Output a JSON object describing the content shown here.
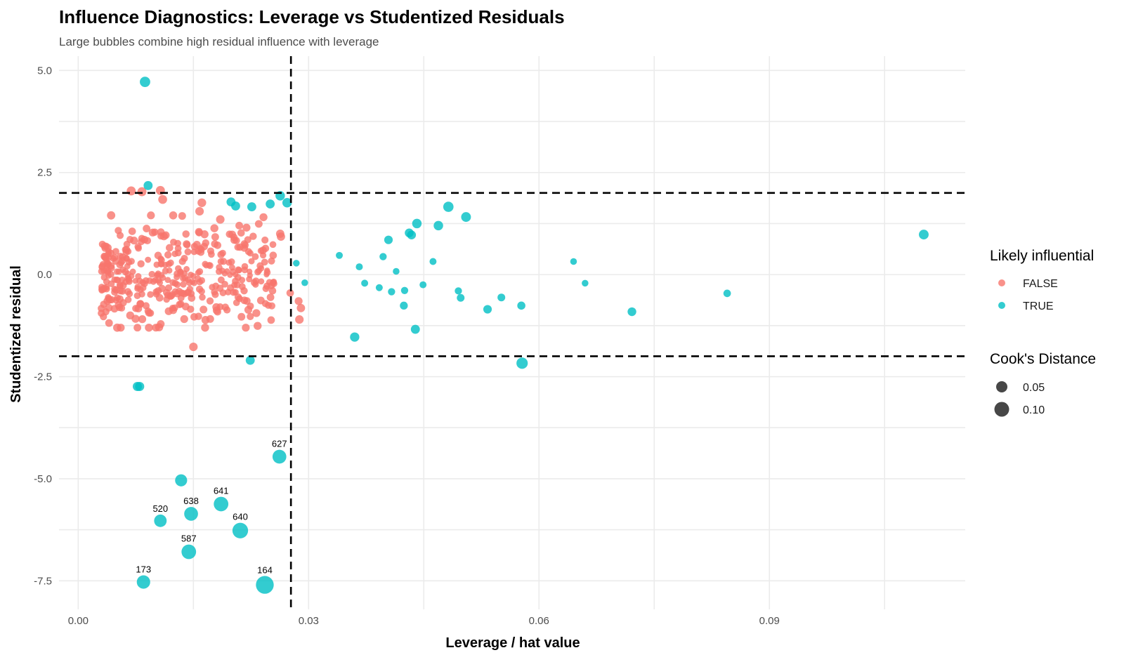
{
  "chart_data": {
    "type": "scatter",
    "title": "Influence Diagnostics: Leverage vs Studentized Residuals",
    "subtitle": "Large bubbles combine high residual influence with leverage",
    "xlabel": "Leverage / hat value",
    "ylabel": "Studentized residual",
    "xlim": [
      -0.0025,
      0.1155
    ],
    "ylim": [
      -8.2,
      5.35
    ],
    "x_ticks": [
      0.0,
      0.03,
      0.06,
      0.09
    ],
    "x_tick_labels": [
      "0.00",
      "0.03",
      "0.06",
      "0.09"
    ],
    "y_ticks": [
      5.0,
      2.5,
      0.0,
      -2.5,
      -5.0,
      -7.5
    ],
    "y_tick_labels": [
      "5.0",
      "2.5",
      "0.0",
      "-2.5",
      "-5.0",
      "-7.5"
    ],
    "grid": true,
    "reference_lines": {
      "vertical": [
        0.0277
      ],
      "horizontal": [
        2,
        -2
      ]
    },
    "colors": {
      "FALSE": "#F8766D",
      "TRUE": "#00BFC4"
    },
    "legend": {
      "placement": "right",
      "color_title": "Likely influential",
      "color_entries": [
        "FALSE",
        "TRUE"
      ],
      "size_title": "Cook's Distance",
      "size_entries": [
        {
          "label": "0.05",
          "value": 0.05
        },
        {
          "label": "0.10",
          "value": 0.1
        }
      ]
    },
    "series": [
      {
        "name": "TRUE",
        "points": [
          {
            "x": 0.0087,
            "y": 4.72,
            "cook": 0.025
          },
          {
            "x": 0.0091,
            "y": 2.18,
            "cook": 0.015
          },
          {
            "x": 0.0199,
            "y": 1.78,
            "cook": 0.015
          },
          {
            "x": 0.0205,
            "y": 1.68,
            "cook": 0.015
          },
          {
            "x": 0.0226,
            "y": 1.66,
            "cook": 0.015
          },
          {
            "x": 0.025,
            "y": 1.73,
            "cook": 0.015
          },
          {
            "x": 0.0263,
            "y": 1.93,
            "cook": 0.018
          },
          {
            "x": 0.0272,
            "y": 1.76,
            "cook": 0.018
          },
          {
            "x": 0.0284,
            "y": 0.28,
            "cook": 0.004
          },
          {
            "x": 0.0295,
            "y": -0.2,
            "cook": 0.004
          },
          {
            "x": 0.034,
            "y": 0.47,
            "cook": 0.005
          },
          {
            "x": 0.0366,
            "y": 0.19,
            "cook": 0.005
          },
          {
            "x": 0.0373,
            "y": -0.21,
            "cook": 0.005
          },
          {
            "x": 0.0392,
            "y": -0.32,
            "cook": 0.005
          },
          {
            "x": 0.0397,
            "y": 0.44,
            "cook": 0.006
          },
          {
            "x": 0.0404,
            "y": 0.85,
            "cook": 0.012
          },
          {
            "x": 0.0408,
            "y": -0.42,
            "cook": 0.006
          },
          {
            "x": 0.0414,
            "y": 0.08,
            "cook": 0.004
          },
          {
            "x": 0.0424,
            "y": -0.76,
            "cook": 0.009
          },
          {
            "x": 0.0425,
            "y": -0.39,
            "cook": 0.006
          },
          {
            "x": 0.0431,
            "y": 1.02,
            "cook": 0.014
          },
          {
            "x": 0.0434,
            "y": 0.97,
            "cook": 0.014
          },
          {
            "x": 0.0439,
            "y": -1.34,
            "cook": 0.015
          },
          {
            "x": 0.0441,
            "y": 1.25,
            "cook": 0.018
          },
          {
            "x": 0.0449,
            "y": -0.25,
            "cook": 0.005
          },
          {
            "x": 0.0462,
            "y": 0.32,
            "cook": 0.005
          },
          {
            "x": 0.0469,
            "y": 1.2,
            "cook": 0.018
          },
          {
            "x": 0.0482,
            "y": 1.66,
            "cook": 0.024
          },
          {
            "x": 0.0495,
            "y": -0.4,
            "cook": 0.006
          },
          {
            "x": 0.0498,
            "y": -0.57,
            "cook": 0.008
          },
          {
            "x": 0.0505,
            "y": 1.41,
            "cook": 0.02
          },
          {
            "x": 0.036,
            "y": -1.53,
            "cook": 0.017
          },
          {
            "x": 0.0533,
            "y": -0.85,
            "cook": 0.012
          },
          {
            "x": 0.0551,
            "y": -0.56,
            "cook": 0.008
          },
          {
            "x": 0.0577,
            "y": -0.76,
            "cook": 0.01
          },
          {
            "x": 0.0578,
            "y": -2.17,
            "cook": 0.033
          },
          {
            "x": 0.0645,
            "y": 0.32,
            "cook": 0.004
          },
          {
            "x": 0.066,
            "y": -0.21,
            "cook": 0.004
          },
          {
            "x": 0.0721,
            "y": -0.91,
            "cook": 0.013
          },
          {
            "x": 0.0845,
            "y": -0.46,
            "cook": 0.007
          },
          {
            "x": 0.1101,
            "y": 0.98,
            "cook": 0.02
          },
          {
            "x": 0.0224,
            "y": -2.1,
            "cook": 0.015
          },
          {
            "x": 0.0077,
            "y": -2.74,
            "cook": 0.016
          },
          {
            "x": 0.008,
            "y": -2.74,
            "cook": 0.016
          },
          {
            "x": 0.0262,
            "y": -4.46,
            "cook": 0.06,
            "label": "627"
          },
          {
            "x": 0.0134,
            "y": -5.04,
            "cook": 0.04
          },
          {
            "x": 0.0186,
            "y": -5.62,
            "cook": 0.07,
            "label": "641"
          },
          {
            "x": 0.0147,
            "y": -5.86,
            "cook": 0.06,
            "label": "638"
          },
          {
            "x": 0.0107,
            "y": -6.03,
            "cook": 0.045,
            "label": "520"
          },
          {
            "x": 0.0211,
            "y": -6.27,
            "cook": 0.085,
            "label": "640"
          },
          {
            "x": 0.0144,
            "y": -6.79,
            "cook": 0.07,
            "label": "587"
          },
          {
            "x": 0.0085,
            "y": -7.53,
            "cook": 0.055,
            "label": "173"
          },
          {
            "x": 0.0243,
            "y": -7.6,
            "cook": 0.12,
            "label": "164"
          }
        ]
      },
      {
        "name": "FALSE",
        "generated_points": {
          "count": 400,
          "x_range": [
            0.003,
            0.0295
          ],
          "y_range": [
            -1.8,
            2.1
          ]
        },
        "points": [
          {
            "x": 0.0069,
            "y": 2.05,
            "cook": 0.015
          },
          {
            "x": 0.0083,
            "y": 2.03,
            "cook": 0.015
          },
          {
            "x": 0.0107,
            "y": 2.06,
            "cook": 0.015
          },
          {
            "x": 0.011,
            "y": 1.84,
            "cook": 0.014
          },
          {
            "x": 0.0161,
            "y": 1.76,
            "cook": 0.013
          },
          {
            "x": 0.0158,
            "y": 1.55,
            "cook": 0.012
          },
          {
            "x": 0.0185,
            "y": 1.35,
            "cook": 0.012
          },
          {
            "x": 0.0263,
            "y": 1.0,
            "cook": 0.011
          },
          {
            "x": 0.0264,
            "y": 0.93,
            "cook": 0.011
          },
          {
            "x": 0.029,
            "y": -0.82,
            "cook": 0.011
          },
          {
            "x": 0.0288,
            "y": -1.1,
            "cook": 0.012
          },
          {
            "x": 0.015,
            "y": -1.77,
            "cook": 0.012
          },
          {
            "x": 0.0276,
            "y": -0.45,
            "cook": 0.007
          },
          {
            "x": 0.0287,
            "y": -0.65,
            "cook": 0.009
          }
        ]
      }
    ]
  }
}
